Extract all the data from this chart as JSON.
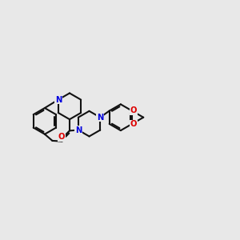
{
  "bg": "#e8e8e8",
  "bc": "#111111",
  "nc": "#0000dd",
  "oc": "#dd0000",
  "lw": 1.5,
  "fs": 7.2,
  "figsize": [
    3.0,
    3.0
  ],
  "dpi": 100,
  "xlim": [
    -0.5,
    10.5
  ],
  "ylim": [
    3.2,
    7.2
  ]
}
